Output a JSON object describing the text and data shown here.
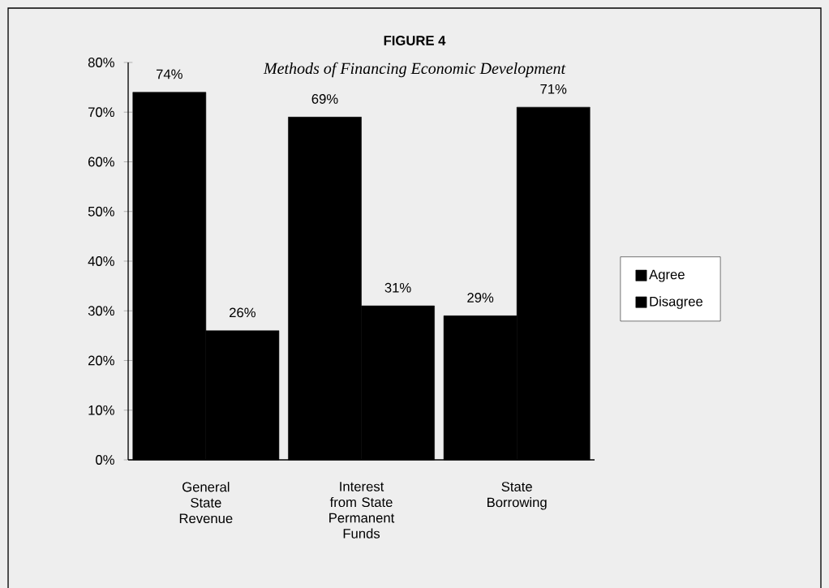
{
  "chart_data": {
    "type": "bar",
    "title": "FIGURE 4",
    "subtitle": "Methods of Financing Economic Development",
    "categories": [
      "General State Revenue",
      "Interest from State Permanent Funds",
      "State Borrowing"
    ],
    "series": [
      {
        "name": "Agree",
        "color": "#000000",
        "values": [
          74,
          69,
          29
        ],
        "value_labels": [
          "74%",
          "69%",
          "29%"
        ]
      },
      {
        "name": "Disagree",
        "color": "#000000",
        "values": [
          26,
          31,
          71
        ],
        "value_labels": [
          "26%",
          "31%",
          "71%"
        ]
      }
    ],
    "ylim": [
      0,
      80
    ],
    "yticks": [
      {
        "value": 0,
        "label": "0%"
      },
      {
        "value": 10,
        "label": "10%"
      },
      {
        "value": 20,
        "label": "20%"
      },
      {
        "value": 30,
        "label": "30%"
      },
      {
        "value": 40,
        "label": "40%"
      },
      {
        "value": 50,
        "label": "50%"
      },
      {
        "value": 60,
        "label": "60%"
      },
      {
        "value": 70,
        "label": "70%"
      },
      {
        "value": 80,
        "label": "80%"
      }
    ],
    "grid": false,
    "legend": "right"
  }
}
